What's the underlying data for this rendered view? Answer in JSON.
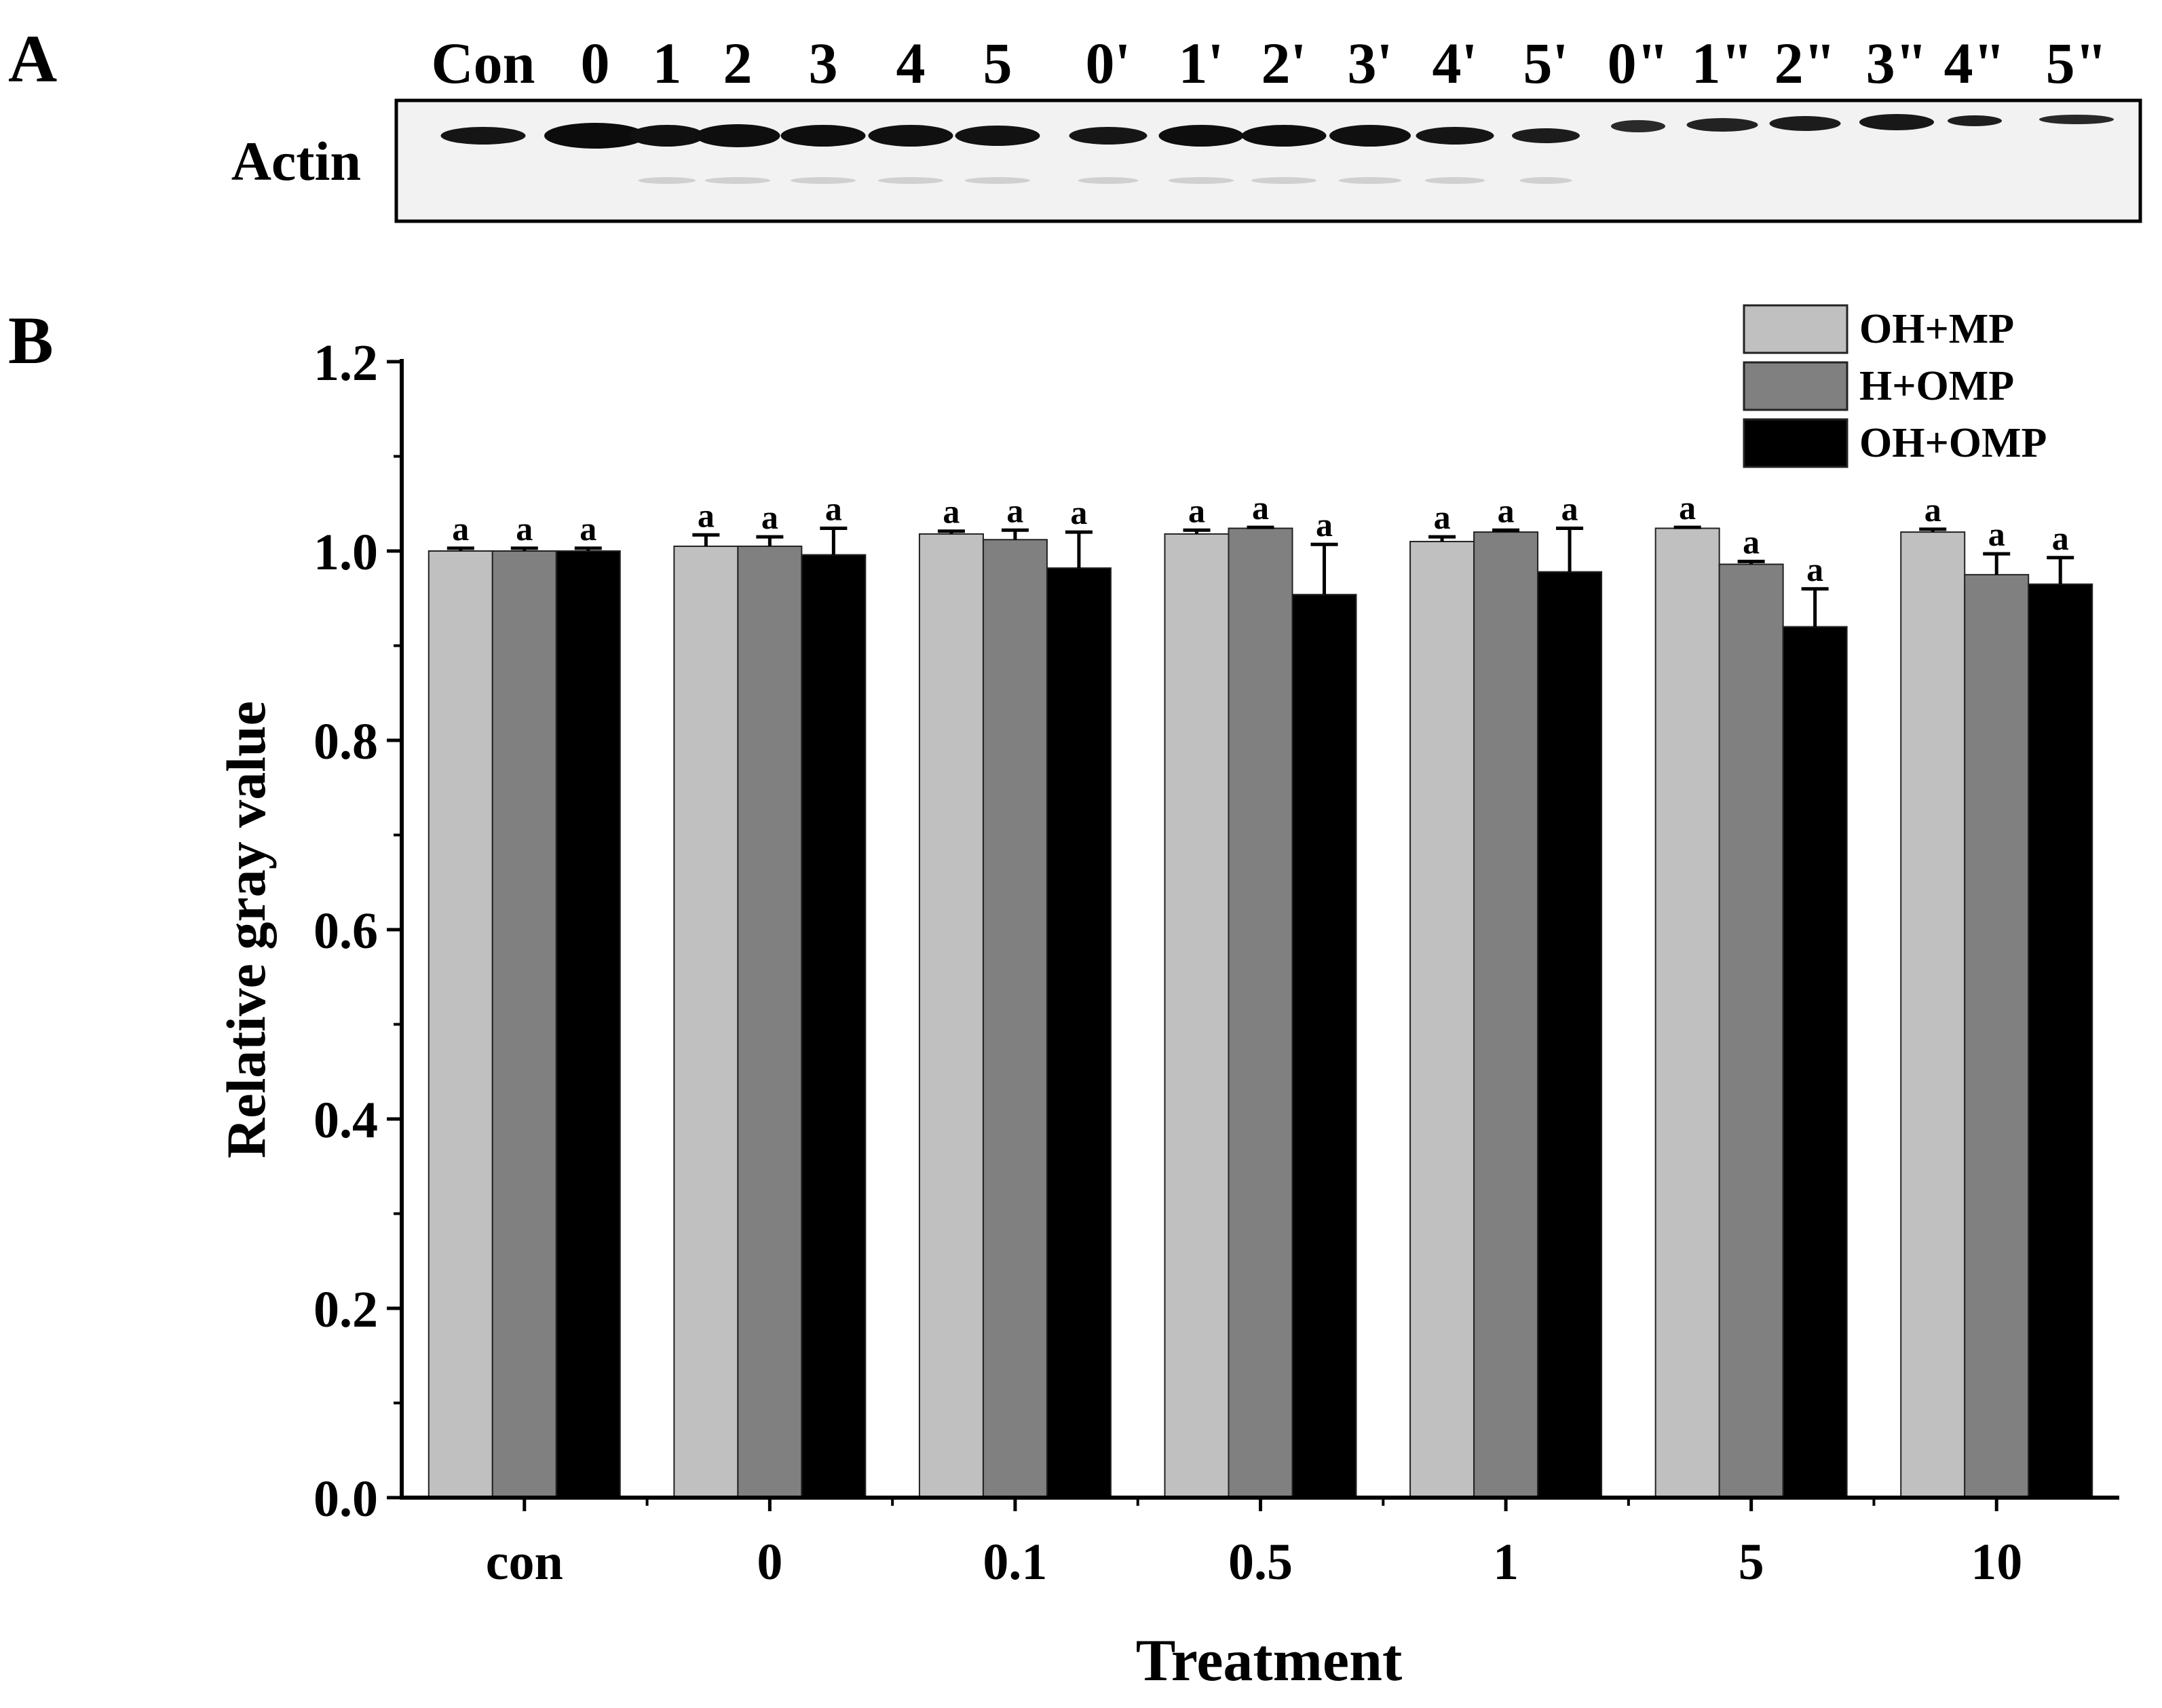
{
  "panel_a": {
    "label": "A",
    "row_label": "Actin",
    "lanes": [
      "Con",
      "0",
      "1",
      "2",
      "3",
      "4",
      "5",
      "0'",
      "1'",
      "2'",
      "3'",
      "4'",
      "5'",
      "0\"",
      "1\"",
      "2\"",
      "3\"",
      "4\"",
      "5\""
    ]
  },
  "panel_b": {
    "label": "B"
  },
  "colors": {
    "OH+MP": "#c0c0c0",
    "H+OMP": "#808080",
    "OH+OMP": "#000000"
  },
  "chart_data": {
    "type": "bar",
    "title": "",
    "xlabel": "Treatment",
    "ylabel": "Relative gray value",
    "ylim": [
      0,
      1.2
    ],
    "yticks": [
      "0.0",
      "0.2",
      "0.4",
      "0.6",
      "0.8",
      "1.0",
      "1.2"
    ],
    "categories": [
      "con",
      "0",
      "0.1",
      "0.5",
      "1",
      "5",
      "10"
    ],
    "legend": [
      "OH+MP",
      "H+OMP",
      "OH+OMP"
    ],
    "legend_position": "top-right",
    "series": [
      {
        "name": "OH+MP",
        "values": [
          1.0,
          1.005,
          1.018,
          1.018,
          1.01,
          1.024,
          1.02
        ],
        "errors": [
          0.003,
          0.012,
          0.003,
          0.004,
          0.005,
          0.001,
          0.003
        ],
        "letters": [
          "a",
          "a",
          "a",
          "a",
          "a",
          "a",
          "a"
        ]
      },
      {
        "name": "H+OMP",
        "values": [
          1.0,
          1.005,
          1.012,
          1.024,
          1.02,
          0.986,
          0.975
        ],
        "errors": [
          0.003,
          0.01,
          0.01,
          0.001,
          0.002,
          0.003,
          0.022
        ],
        "letters": [
          "a",
          "a",
          "a",
          "a",
          "a",
          "a",
          "a"
        ]
      },
      {
        "name": "OH+OMP",
        "values": [
          1.0,
          0.996,
          0.982,
          0.954,
          0.978,
          0.92,
          0.965
        ],
        "errors": [
          0.003,
          0.028,
          0.038,
          0.053,
          0.046,
          0.04,
          0.028
        ],
        "letters": [
          "a",
          "a",
          "a",
          "a",
          "a",
          "a",
          "a"
        ]
      }
    ]
  }
}
